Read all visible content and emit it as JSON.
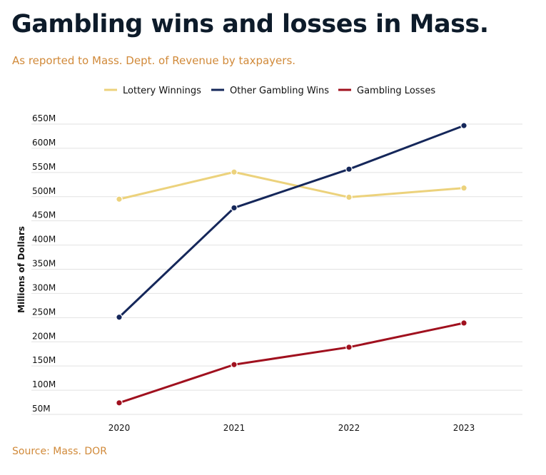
{
  "colors": {
    "lottery": "#ecd27c",
    "other": "#15275a",
    "losses": "#a0101e",
    "title": "#0d1b2a",
    "accent": "#d18a3a",
    "grid": "#e2e2e2"
  },
  "chart_data": {
    "type": "line",
    "title": "Gambling wins and losses in Mass.",
    "subtitle": "As reported to Mass. Dept. of Revenue by taxpayers.",
    "source": "Source: Mass. DOR",
    "xlabel": "",
    "ylabel": "Millions of Dollars",
    "categories": [
      "2020",
      "2021",
      "2022",
      "2023"
    ],
    "y_ticks": [
      "50M",
      "100M",
      "150M",
      "200M",
      "250M",
      "300M",
      "350M",
      "400M",
      "450M",
      "500M",
      "550M",
      "600M",
      "650M"
    ],
    "ylim": [
      50,
      650
    ],
    "grid": "horizontal",
    "legend_position": "top-center",
    "series": [
      {
        "name": "Lottery Winnings",
        "color_key": "lottery",
        "values": [
          486,
          542,
          490,
          509
        ]
      },
      {
        "name": "Other Gambling Wins",
        "color_key": "other",
        "values": [
          242,
          468,
          548,
          638
        ]
      },
      {
        "name": "Gambling Losses",
        "color_key": "losses",
        "values": [
          65,
          144,
          180,
          230
        ]
      }
    ]
  }
}
